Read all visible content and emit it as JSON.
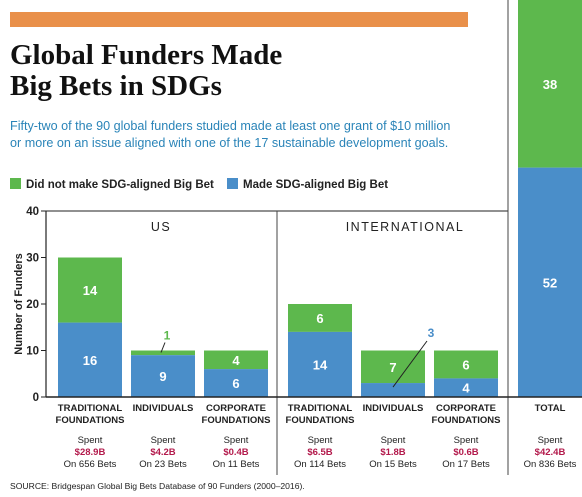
{
  "header": {
    "title_line1": "Global Funders Made",
    "title_line2": "Big Bets in SDGs",
    "subtitle_line1": "Fifty-two of the 90 global funders studied made at least one grant of $10 million",
    "subtitle_line2": "or more on an issue aligned with one of the 17 sustainable development goals."
  },
  "colors": {
    "accent": "#e9904a",
    "green": "#5db84d",
    "blue": "#4a8ec9",
    "spent": "#b3194b",
    "subtitle": "#2a84b8"
  },
  "chart_data": {
    "type": "bar",
    "stacked": true,
    "ylabel": "Number of Funders",
    "ylim": [
      0,
      40
    ],
    "yticks": [
      0,
      10,
      20,
      30,
      40
    ],
    "legend_position": "top-left",
    "series": [
      {
        "name": "Made SDG-aligned Big Bet",
        "color": "#4a8ec9"
      },
      {
        "name": "Did not make SDG-aligned Big Bet",
        "color": "#5db84d"
      }
    ],
    "groups": [
      {
        "label": "US",
        "bars": [
          {
            "label_lines": [
              "TRADITIONAL",
              "FOUNDATIONS"
            ],
            "made": 16,
            "not_made": 14,
            "spent_label": "Spent",
            "amount": "$28.9B",
            "bets": "On 656 Bets",
            "not_made_label_callout": false
          },
          {
            "label_lines": [
              "INDIVIDUALS"
            ],
            "made": 9,
            "not_made": 1,
            "spent_label": "Spent",
            "amount": "$4.2B",
            "bets": "On 23 Bets",
            "not_made_label_callout": true
          },
          {
            "label_lines": [
              "CORPORATE",
              "FOUNDATIONS"
            ],
            "made": 6,
            "not_made": 4,
            "spent_label": "Spent",
            "amount": "$0.4B",
            "bets": "On 11 Bets",
            "not_made_label_callout": false
          }
        ]
      },
      {
        "label": "INTERNATIONAL",
        "bars": [
          {
            "label_lines": [
              "TRADITIONAL",
              "FOUNDATIONS"
            ],
            "made": 14,
            "not_made": 6,
            "spent_label": "Spent",
            "amount": "$6.5B",
            "bets": "On 114 Bets",
            "made_label_callout": false
          },
          {
            "label_lines": [
              "INDIVIDUALS"
            ],
            "made": 3,
            "not_made": 7,
            "spent_label": "Spent",
            "amount": "$1.8B",
            "bets": "On 15 Bets",
            "made_label_callout": true
          },
          {
            "label_lines": [
              "CORPORATE",
              "FOUNDATIONS"
            ],
            "made": 4,
            "not_made": 6,
            "spent_label": "Spent",
            "amount": "$0.6B",
            "bets": "On 17 Bets",
            "made_label_callout": false
          }
        ]
      }
    ],
    "total": {
      "label": "TOTAL",
      "made": 52,
      "not_made": 38,
      "spent_label": "Spent",
      "amount": "$42.4B",
      "bets": "On 836 Bets"
    }
  },
  "source": "SOURCE: Bridgespan Global Big Bets Database of 90 Funders (2000–2016)."
}
